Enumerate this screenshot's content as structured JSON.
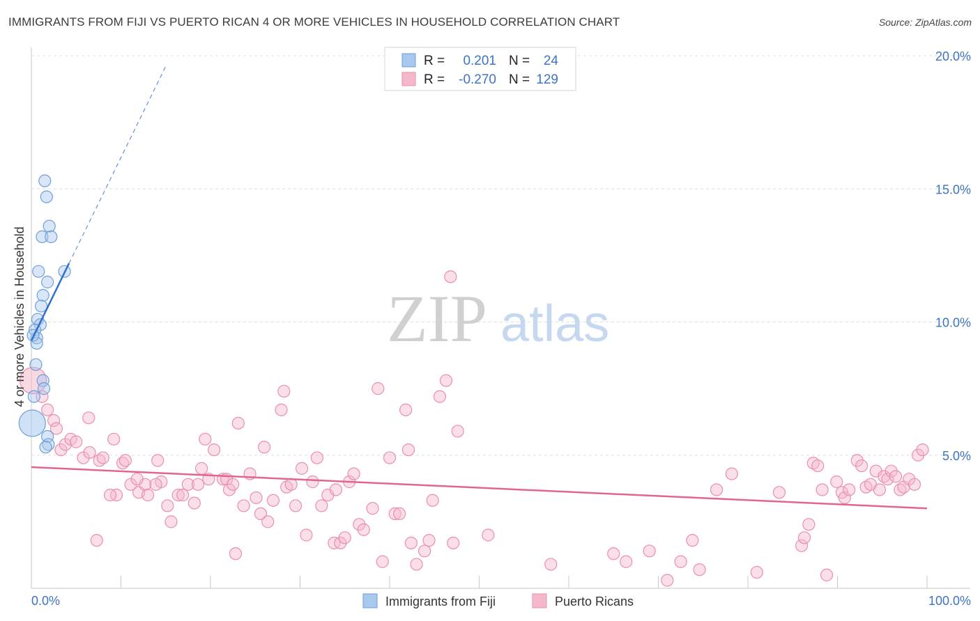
{
  "title": "IMMIGRANTS FROM FIJI VS PUERTO RICAN 4 OR MORE VEHICLES IN HOUSEHOLD CORRELATION CHART",
  "source": "Source: ZipAtlas.com",
  "watermark": {
    "zip": "ZIP",
    "atlas": "atlas"
  },
  "colors": {
    "blue_fill": "#a8c8ee",
    "blue_stroke": "#6f9fd8",
    "blue_line": "#2f6fce",
    "pink_fill": "#f5b8cb",
    "pink_stroke": "#ea8fac",
    "pink_line": "#e0668e",
    "tick_label": "#3a74c4",
    "grid": "#dddddd"
  },
  "legend": {
    "rows": [
      {
        "r_label": "R =",
        "r_value": "0.201",
        "n_label": "N =",
        "n_value": "24"
      },
      {
        "r_label": "R =",
        "r_value": "-0.270",
        "n_label": "N =",
        "n_value": "129"
      }
    ]
  },
  "chart_data": {
    "type": "scatter",
    "title": "IMMIGRANTS FROM FIJI VS PUERTO RICAN 4 OR MORE VEHICLES IN HOUSEHOLD CORRELATION CHART",
    "xlabel": "",
    "ylabel": "4 or more Vehicles in Household",
    "xlim": [
      0,
      100
    ],
    "ylim": [
      0,
      20
    ],
    "x_tick_labels": [
      "0.0%",
      "100.0%"
    ],
    "y_ticks": [
      5,
      10,
      15,
      20
    ],
    "y_tick_labels": [
      "5.0%",
      "10.0%",
      "15.0%",
      "20.0%"
    ],
    "series": [
      {
        "name": "Immigrants from Fiji",
        "r": 0.201,
        "n": 24,
        "trend": {
          "x": [
            0.0,
            4.2
          ],
          "y": [
            9.3,
            12.2
          ]
        },
        "trend_extension": {
          "x": [
            4.2,
            15.0
          ],
          "y": [
            12.2,
            19.6
          ]
        },
        "points": [
          {
            "x": 1.5,
            "y": 15.3
          },
          {
            "x": 1.7,
            "y": 14.7
          },
          {
            "x": 2.0,
            "y": 13.6
          },
          {
            "x": 1.2,
            "y": 13.2
          },
          {
            "x": 2.2,
            "y": 13.2
          },
          {
            "x": 0.8,
            "y": 11.9
          },
          {
            "x": 3.7,
            "y": 11.9
          },
          {
            "x": 1.8,
            "y": 11.5
          },
          {
            "x": 1.3,
            "y": 11.0
          },
          {
            "x": 1.1,
            "y": 10.6
          },
          {
            "x": 0.7,
            "y": 10.1
          },
          {
            "x": 1.0,
            "y": 9.9
          },
          {
            "x": 0.4,
            "y": 9.7
          },
          {
            "x": 0.6,
            "y": 9.4
          },
          {
            "x": 0.6,
            "y": 9.2
          },
          {
            "x": 1.3,
            "y": 7.8
          },
          {
            "x": 1.4,
            "y": 7.5
          },
          {
            "x": 0.3,
            "y": 7.2
          },
          {
            "x": 0.1,
            "y": 6.2,
            "big": true
          },
          {
            "x": 1.8,
            "y": 5.7
          },
          {
            "x": 1.9,
            "y": 5.4
          },
          {
            "x": 1.6,
            "y": 5.3
          },
          {
            "x": 0.5,
            "y": 8.4
          },
          {
            "x": 0.2,
            "y": 9.5
          }
        ]
      },
      {
        "name": "Puerto Ricans",
        "r": -0.27,
        "n": 129,
        "trend": {
          "x": [
            0,
            100
          ],
          "y": [
            4.55,
            3.0
          ]
        },
        "points": [
          {
            "x": 0.2,
            "y": 7.8,
            "big": true
          },
          {
            "x": 1.2,
            "y": 7.2
          },
          {
            "x": 1.8,
            "y": 6.7
          },
          {
            "x": 2.5,
            "y": 6.3
          },
          {
            "x": 2.8,
            "y": 6.0
          },
          {
            "x": 3.3,
            "y": 5.2
          },
          {
            "x": 3.8,
            "y": 5.4
          },
          {
            "x": 4.4,
            "y": 5.6
          },
          {
            "x": 5.0,
            "y": 5.5
          },
          {
            "x": 5.8,
            "y": 4.9
          },
          {
            "x": 6.5,
            "y": 5.1
          },
          {
            "x": 6.4,
            "y": 6.4
          },
          {
            "x": 7.6,
            "y": 4.8
          },
          {
            "x": 8.0,
            "y": 4.9
          },
          {
            "x": 9.2,
            "y": 5.6
          },
          {
            "x": 10.2,
            "y": 4.7
          },
          {
            "x": 11.1,
            "y": 3.9
          },
          {
            "x": 12.0,
            "y": 3.6
          },
          {
            "x": 12.7,
            "y": 3.9
          },
          {
            "x": 13.0,
            "y": 3.5
          },
          {
            "x": 14.1,
            "y": 4.8
          },
          {
            "x": 14.5,
            "y": 4.0
          },
          {
            "x": 15.2,
            "y": 3.1
          },
          {
            "x": 15.6,
            "y": 2.5
          },
          {
            "x": 16.4,
            "y": 3.5
          },
          {
            "x": 16.9,
            "y": 3.5
          },
          {
            "x": 17.5,
            "y": 3.9
          },
          {
            "x": 18.2,
            "y": 3.2
          },
          {
            "x": 18.6,
            "y": 3.9
          },
          {
            "x": 19.0,
            "y": 4.5
          },
          {
            "x": 19.4,
            "y": 5.6
          },
          {
            "x": 20.4,
            "y": 5.2
          },
          {
            "x": 21.4,
            "y": 4.1
          },
          {
            "x": 21.8,
            "y": 4.1
          },
          {
            "x": 22.1,
            "y": 3.7
          },
          {
            "x": 22.5,
            "y": 3.9
          },
          {
            "x": 23.1,
            "y": 6.2
          },
          {
            "x": 23.7,
            "y": 3.1
          },
          {
            "x": 24.4,
            "y": 4.3
          },
          {
            "x": 25.1,
            "y": 3.4
          },
          {
            "x": 25.6,
            "y": 2.8
          },
          {
            "x": 26.0,
            "y": 5.3
          },
          {
            "x": 26.4,
            "y": 2.5
          },
          {
            "x": 27.0,
            "y": 3.3
          },
          {
            "x": 27.9,
            "y": 6.7
          },
          {
            "x": 28.2,
            "y": 7.4
          },
          {
            "x": 28.5,
            "y": 3.8
          },
          {
            "x": 29.0,
            "y": 3.9
          },
          {
            "x": 29.5,
            "y": 3.1
          },
          {
            "x": 30.2,
            "y": 4.5
          },
          {
            "x": 30.7,
            "y": 2.0
          },
          {
            "x": 31.4,
            "y": 4.0
          },
          {
            "x": 31.9,
            "y": 4.9
          },
          {
            "x": 32.4,
            "y": 3.1
          },
          {
            "x": 33.1,
            "y": 3.5
          },
          {
            "x": 33.8,
            "y": 1.7
          },
          {
            "x": 34.5,
            "y": 1.7
          },
          {
            "x": 35.0,
            "y": 1.9
          },
          {
            "x": 35.5,
            "y": 4.0
          },
          {
            "x": 36.0,
            "y": 4.3
          },
          {
            "x": 36.6,
            "y": 2.4
          },
          {
            "x": 37.1,
            "y": 2.2
          },
          {
            "x": 38.1,
            "y": 3.0
          },
          {
            "x": 38.7,
            "y": 7.5
          },
          {
            "x": 39.2,
            "y": 1.0
          },
          {
            "x": 40.0,
            "y": 4.9
          },
          {
            "x": 40.6,
            "y": 2.8
          },
          {
            "x": 41.1,
            "y": 2.8
          },
          {
            "x": 41.8,
            "y": 6.7
          },
          {
            "x": 42.1,
            "y": 5.2
          },
          {
            "x": 42.4,
            "y": 1.7
          },
          {
            "x": 43.0,
            "y": 0.9
          },
          {
            "x": 43.9,
            "y": 1.4
          },
          {
            "x": 44.4,
            "y": 1.8
          },
          {
            "x": 44.8,
            "y": 3.3
          },
          {
            "x": 45.6,
            "y": 7.2
          },
          {
            "x": 46.3,
            "y": 7.8
          },
          {
            "x": 46.8,
            "y": 11.7
          },
          {
            "x": 47.1,
            "y": 1.7
          },
          {
            "x": 47.6,
            "y": 5.9
          },
          {
            "x": 51.0,
            "y": 2.0
          },
          {
            "x": 58.0,
            "y": 0.9
          },
          {
            "x": 65.0,
            "y": 1.3
          },
          {
            "x": 66.4,
            "y": 1.0
          },
          {
            "x": 69.0,
            "y": 1.4
          },
          {
            "x": 71.0,
            "y": 0.3
          },
          {
            "x": 72.5,
            "y": 1.0
          },
          {
            "x": 73.8,
            "y": 1.8
          },
          {
            "x": 74.6,
            "y": 0.7
          },
          {
            "x": 76.5,
            "y": 3.7
          },
          {
            "x": 78.2,
            "y": 4.3
          },
          {
            "x": 81.0,
            "y": 0.6
          },
          {
            "x": 83.5,
            "y": 3.6
          },
          {
            "x": 86.0,
            "y": 1.6
          },
          {
            "x": 86.3,
            "y": 1.9
          },
          {
            "x": 86.8,
            "y": 2.4
          },
          {
            "x": 87.3,
            "y": 4.7
          },
          {
            "x": 87.8,
            "y": 4.6
          },
          {
            "x": 88.3,
            "y": 3.7
          },
          {
            "x": 88.8,
            "y": 0.5
          },
          {
            "x": 89.9,
            "y": 4.0
          },
          {
            "x": 90.5,
            "y": 3.6
          },
          {
            "x": 90.8,
            "y": 3.4
          },
          {
            "x": 91.3,
            "y": 3.7
          },
          {
            "x": 92.2,
            "y": 4.8
          },
          {
            "x": 92.7,
            "y": 4.6
          },
          {
            "x": 93.2,
            "y": 3.8
          },
          {
            "x": 93.7,
            "y": 3.9
          },
          {
            "x": 94.3,
            "y": 4.4
          },
          {
            "x": 94.7,
            "y": 3.7
          },
          {
            "x": 95.2,
            "y": 4.2
          },
          {
            "x": 95.6,
            "y": 4.1
          },
          {
            "x": 96.0,
            "y": 4.4
          },
          {
            "x": 96.5,
            "y": 4.2
          },
          {
            "x": 97.0,
            "y": 3.7
          },
          {
            "x": 97.4,
            "y": 3.8
          },
          {
            "x": 98.0,
            "y": 4.1
          },
          {
            "x": 98.6,
            "y": 3.9
          },
          {
            "x": 99.0,
            "y": 5.0
          },
          {
            "x": 99.5,
            "y": 5.2
          },
          {
            "x": 9.5,
            "y": 3.5
          },
          {
            "x": 10.5,
            "y": 4.8
          },
          {
            "x": 11.8,
            "y": 4.1
          },
          {
            "x": 13.9,
            "y": 3.9
          },
          {
            "x": 7.3,
            "y": 1.8
          },
          {
            "x": 19.8,
            "y": 4.1
          },
          {
            "x": 22.8,
            "y": 1.3
          },
          {
            "x": 34.0,
            "y": 3.7
          },
          {
            "x": 8.8,
            "y": 3.5
          }
        ]
      }
    ]
  }
}
